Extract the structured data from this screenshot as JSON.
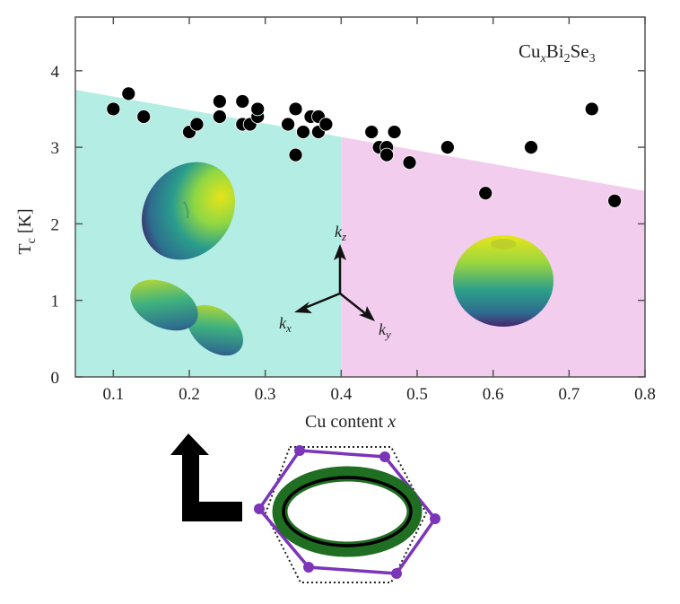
{
  "chart_data": {
    "type": "scatter",
    "title": "",
    "annotation": "CuxBi2Se3",
    "annotation_parts": {
      "base1": "Cu",
      "sub1": "x",
      "base2": "Bi",
      "sub2": "2",
      "base3": "Se",
      "sub3": "3"
    },
    "xlabel": "Cu content x",
    "xlabel_parts": {
      "text": "Cu content ",
      "var": "x"
    },
    "ylabel": "Tc [K]",
    "ylabel_parts": {
      "base": "T",
      "sub": "c",
      "unit": " [K]"
    },
    "xlim": [
      0.05,
      0.8
    ],
    "ylim": [
      0,
      4.7
    ],
    "xticks": [
      0.1,
      0.2,
      0.3,
      0.4,
      0.5,
      0.6,
      0.7,
      0.8
    ],
    "xtick_labels": [
      "0.1",
      "0.2",
      "0.3",
      "0.4",
      "0.5",
      "0.6",
      "0.7",
      "0.8"
    ],
    "yticks": [
      0,
      1,
      2,
      3,
      4
    ],
    "ytick_labels": [
      "0",
      "1",
      "2",
      "3",
      "4"
    ],
    "grid": false,
    "legend": null,
    "series": [
      {
        "name": "Tc measurements",
        "marker": "filled-circle",
        "color": "#000000",
        "x": [
          0.1,
          0.12,
          0.14,
          0.2,
          0.21,
          0.24,
          0.24,
          0.27,
          0.27,
          0.28,
          0.29,
          0.29,
          0.33,
          0.34,
          0.34,
          0.35,
          0.36,
          0.37,
          0.37,
          0.38,
          0.44,
          0.45,
          0.46,
          0.46,
          0.47,
          0.49,
          0.54,
          0.59,
          0.65,
          0.73,
          0.76
        ],
        "y": [
          3.5,
          3.7,
          3.4,
          3.2,
          3.3,
          3.6,
          3.4,
          3.6,
          3.3,
          3.3,
          3.4,
          3.5,
          3.3,
          3.5,
          2.9,
          3.2,
          3.4,
          3.4,
          3.2,
          3.3,
          3.2,
          3.0,
          3.0,
          2.9,
          3.2,
          2.8,
          3.0,
          2.4,
          3.0,
          3.5,
          2.3
        ]
      }
    ],
    "regions": [
      {
        "name": "nematic-dx-region",
        "x_range": [
          0.05,
          0.4
        ],
        "top_line": {
          "x": [
            0.05,
            0.8
          ],
          "y": [
            3.75,
            2.43
          ]
        },
        "color": "#b3ede3"
      },
      {
        "name": "nematic-dy-region",
        "x_range": [
          0.4,
          0.8
        ],
        "top_line": {
          "x": [
            0.05,
            0.8
          ],
          "y": [
            3.75,
            2.43
          ]
        },
        "color": "#f3cdee"
      }
    ],
    "insets": {
      "axes_labels": [
        "kz",
        "kx",
        "ky"
      ],
      "axes_label_parts": [
        {
          "base": "k",
          "sub": "z"
        },
        {
          "base": "k",
          "sub": "x"
        },
        {
          "base": "k",
          "sub": "y"
        }
      ],
      "gap_shapes": [
        "elongated-ellipsoid-gap",
        "two-lobe-gap",
        "donut-gap"
      ],
      "bottom_diagram": "hexagonal-fermi-surface-with-elongated-gap"
    }
  },
  "colors": {
    "axis": "#555555",
    "cyan_region": "#b3ede3",
    "pink_region": "#f3cdee",
    "hexagon": "#7b35b8",
    "gap_green": "#1f6e22",
    "marker": "#000000"
  }
}
